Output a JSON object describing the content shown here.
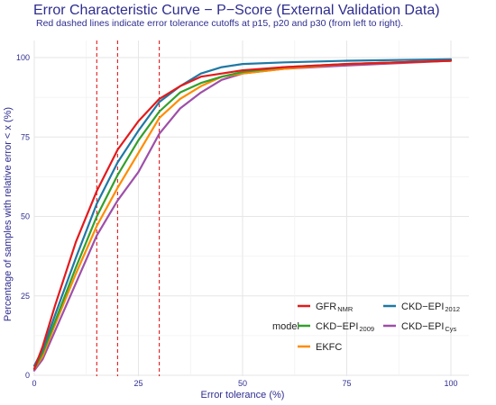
{
  "chart_data": {
    "type": "line",
    "title": "Error Characteristic Curve − P−Score (External Validation Data)",
    "subtitle": "Red dashed lines indicate error tolerance cutoffs at p15, p20 and p30 (from left to right).",
    "xlabel": "Error tolerance (%)",
    "ylabel": "Percentage of samples with relative error < x (%)",
    "xlim": [
      0,
      100
    ],
    "ylim": [
      0,
      100
    ],
    "x_ticks": [
      "0",
      "25",
      "50",
      "75",
      "100"
    ],
    "y_ticks": [
      "0",
      "25",
      "50",
      "75",
      "100"
    ],
    "grid": true,
    "cutoffs": [
      15,
      20,
      30
    ],
    "legend": {
      "title": "model",
      "position": "bottom-right",
      "entries": [
        {
          "base": "GFR",
          "sub": "NMR",
          "color": "#e31a1c"
        },
        {
          "base": "CKD−EPI",
          "sub": "2012",
          "color": "#1f78a4"
        },
        {
          "base": "CKD−EPI",
          "sub": "2009",
          "color": "#33a02c"
        },
        {
          "base": "CKD−EPI",
          "sub": "Cys",
          "color": "#9e4fa8"
        },
        {
          "base": "EKFC",
          "sub": "",
          "color": "#ff8c00"
        }
      ]
    },
    "x": [
      0,
      2,
      5,
      10,
      15,
      20,
      25,
      30,
      35,
      40,
      45,
      50,
      60,
      75,
      100
    ],
    "series": [
      {
        "name": "GFR NMR",
        "color": "#e31a1c",
        "values": [
          2,
          9,
          22,
          42,
          58,
          71,
          80,
          87,
          91,
          94,
          95,
          96,
          97,
          98,
          99
        ]
      },
      {
        "name": "CKD−EPI 2009",
        "color": "#33a02c",
        "values": [
          2,
          7,
          17,
          34,
          50,
          63,
          74,
          83,
          89,
          92,
          94,
          95.5,
          97,
          98,
          99
        ]
      },
      {
        "name": "EKFC",
        "color": "#ff8c00",
        "values": [
          2,
          6,
          16,
          32,
          47,
          59,
          70,
          81,
          87,
          91,
          94,
          95,
          96.5,
          98,
          99
        ]
      },
      {
        "name": "CKD−EPI 2012",
        "color": "#1f78a4",
        "values": [
          3,
          8,
          19,
          37,
          54,
          67,
          77,
          86,
          91,
          95,
          97,
          98,
          98.5,
          99,
          99.5
        ]
      },
      {
        "name": "CKD−EPI Cys",
        "color": "#9e4fa8",
        "values": [
          1.5,
          5,
          14,
          29,
          44,
          55,
          64,
          76,
          84,
          89,
          93,
          95,
          96.5,
          97.5,
          99
        ]
      }
    ]
  }
}
